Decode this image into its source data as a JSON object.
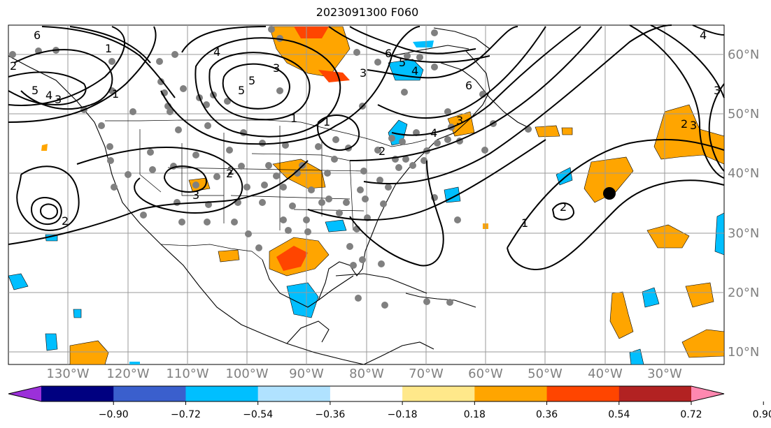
{
  "title": "2023091300 F060",
  "map": {
    "lon_labels": [
      "130°W",
      "120°W",
      "110°W",
      "100°W",
      "90°W",
      "80°W",
      "70°W",
      "60°W",
      "50°W",
      "40°W",
      "30°W"
    ],
    "lat_labels": [
      "60°N",
      "50°N",
      "40°N",
      "30°N",
      "20°N",
      "10°N"
    ],
    "contour_labels": [
      "6",
      "5",
      "4",
      "3",
      "2",
      "1",
      "5",
      "4",
      "3",
      "5",
      "6",
      "3",
      "5",
      "4",
      "1",
      "4",
      "3",
      "2",
      "1",
      "6",
      "4",
      "3",
      "2",
      "2",
      "1",
      "2",
      "3",
      "2",
      "3",
      "1",
      "2"
    ],
    "marker": "black-dot"
  },
  "colorbar": {
    "ticks": [
      "−0.90",
      "−0.72",
      "−0.54",
      "−0.36",
      "−0.18",
      "0.18",
      "0.36",
      "0.54",
      "0.72",
      "0.90"
    ],
    "colors": [
      "#9b30d9",
      "#000080",
      "#3a5fcd",
      "#00bfff",
      "#b0e2ff",
      "#ffffff",
      "#ffe88a",
      "#ffa500",
      "#ff4500",
      "#b22222",
      "#ff88b0"
    ]
  }
}
